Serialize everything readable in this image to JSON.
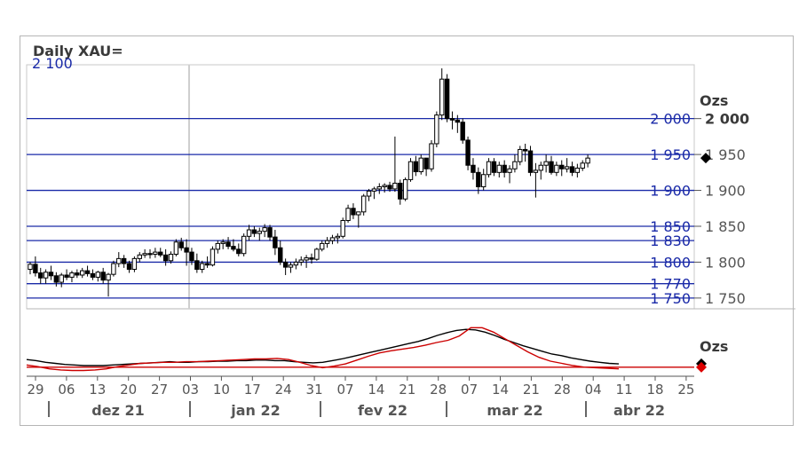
{
  "title": "Daily XAU=",
  "chart_data": [
    {
      "type": "candlestick",
      "title": "Daily XAU=",
      "unit_label": "Ozs",
      "top_partial_label": "2 100",
      "ylim": [
        1735,
        2075
      ],
      "y_ticks": [
        {
          "value": 2000,
          "label": "2 000",
          "bold": true
        },
        {
          "value": 1950,
          "label": "1 950"
        },
        {
          "value": 1900,
          "label": "1 900"
        },
        {
          "value": 1850,
          "label": "1 850"
        },
        {
          "value": 1800,
          "label": "1 800"
        },
        {
          "value": 1750,
          "label": "1 750"
        }
      ],
      "levels": [
        {
          "value": 2000,
          "label": "2 000"
        },
        {
          "value": 1950,
          "label": "1 950"
        },
        {
          "value": 1900,
          "label": "1 900"
        },
        {
          "value": 1850,
          "label": "1 850"
        },
        {
          "value": 1830,
          "label": "1 830"
        },
        {
          "value": 1800,
          "label": "1 800"
        },
        {
          "value": 1770,
          "label": "1 770"
        },
        {
          "value": 1750,
          "label": "1 750"
        }
      ],
      "last_value": 1945,
      "x_ticks": [
        "29",
        "06",
        "13",
        "20",
        "27",
        "03",
        "10",
        "17",
        "24",
        "31",
        "07",
        "14",
        "21",
        "28",
        "07",
        "14",
        "21",
        "28",
        "04",
        "11",
        "18",
        "25"
      ],
      "months": [
        "dez 21",
        "jan 22",
        "fev 22",
        "mar 22",
        "abr 22"
      ],
      "candles": [
        [
          1790,
          1800,
          1783,
          1797
        ],
        [
          1797,
          1808,
          1780,
          1785
        ],
        [
          1785,
          1792,
          1770,
          1778
        ],
        [
          1778,
          1790,
          1770,
          1786
        ],
        [
          1786,
          1795,
          1775,
          1781
        ],
        [
          1781,
          1786,
          1766,
          1772
        ],
        [
          1772,
          1785,
          1765,
          1782
        ],
        [
          1782,
          1790,
          1775,
          1779
        ],
        [
          1779,
          1788,
          1772,
          1785
        ],
        [
          1785,
          1790,
          1778,
          1782
        ],
        [
          1782,
          1792,
          1778,
          1788
        ],
        [
          1788,
          1795,
          1780,
          1784
        ],
        [
          1784,
          1790,
          1775,
          1779
        ],
        [
          1779,
          1788,
          1773,
          1786
        ],
        [
          1786,
          1792,
          1770,
          1775
        ],
        [
          1775,
          1785,
          1752,
          1783
        ],
        [
          1783,
          1802,
          1780,
          1798
        ],
        [
          1798,
          1814,
          1793,
          1805
        ],
        [
          1805,
          1810,
          1792,
          1798
        ],
        [
          1798,
          1802,
          1785,
          1790
        ],
        [
          1790,
          1808,
          1786,
          1805
        ],
        [
          1805,
          1814,
          1800,
          1810
        ],
        [
          1810,
          1818,
          1806,
          1812
        ],
        [
          1812,
          1818,
          1805,
          1811
        ],
        [
          1811,
          1820,
          1806,
          1814
        ],
        [
          1814,
          1820,
          1807,
          1810
        ],
        [
          1810,
          1818,
          1795,
          1802
        ],
        [
          1802,
          1815,
          1798,
          1811
        ],
        [
          1811,
          1832,
          1808,
          1828
        ],
        [
          1828,
          1834,
          1816,
          1820
        ],
        [
          1820,
          1832,
          1795,
          1814
        ],
        [
          1814,
          1820,
          1796,
          1802
        ],
        [
          1802,
          1812,
          1785,
          1790
        ],
        [
          1790,
          1802,
          1785,
          1798
        ],
        [
          1798,
          1808,
          1792,
          1796
        ],
        [
          1796,
          1822,
          1794,
          1818
        ],
        [
          1818,
          1830,
          1812,
          1826
        ],
        [
          1826,
          1832,
          1818,
          1828
        ],
        [
          1828,
          1835,
          1818,
          1822
        ],
        [
          1822,
          1832,
          1815,
          1818
        ],
        [
          1818,
          1826,
          1808,
          1812
        ],
        [
          1812,
          1840,
          1808,
          1836
        ],
        [
          1836,
          1852,
          1830,
          1845
        ],
        [
          1845,
          1850,
          1835,
          1840
        ],
        [
          1840,
          1848,
          1830,
          1843
        ],
        [
          1843,
          1853,
          1835,
          1848
        ],
        [
          1848,
          1852,
          1830,
          1835
        ],
        [
          1835,
          1845,
          1810,
          1820
        ],
        [
          1820,
          1830,
          1796,
          1800
        ],
        [
          1800,
          1805,
          1782,
          1793
        ],
        [
          1793,
          1800,
          1785,
          1796
        ],
        [
          1796,
          1805,
          1790,
          1800
        ],
        [
          1800,
          1808,
          1795,
          1803
        ],
        [
          1803,
          1810,
          1792,
          1806
        ],
        [
          1806,
          1812,
          1798,
          1804
        ],
        [
          1804,
          1820,
          1802,
          1818
        ],
        [
          1818,
          1830,
          1815,
          1826
        ],
        [
          1826,
          1835,
          1820,
          1830
        ],
        [
          1830,
          1838,
          1825,
          1834
        ],
        [
          1834,
          1840,
          1826,
          1836
        ],
        [
          1836,
          1862,
          1833,
          1858
        ],
        [
          1858,
          1880,
          1855,
          1875
        ],
        [
          1875,
          1882,
          1860,
          1866
        ],
        [
          1866,
          1870,
          1848,
          1870
        ],
        [
          1870,
          1895,
          1865,
          1892
        ],
        [
          1892,
          1902,
          1885,
          1899
        ],
        [
          1899,
          1905,
          1888,
          1902
        ],
        [
          1902,
          1910,
          1895,
          1905
        ],
        [
          1905,
          1910,
          1897,
          1907
        ],
        [
          1907,
          1912,
          1898,
          1902
        ],
        [
          1902,
          1975,
          1898,
          1910
        ],
        [
          1910,
          1915,
          1880,
          1888
        ],
        [
          1888,
          1918,
          1885,
          1915
        ],
        [
          1915,
          1945,
          1912,
          1940
        ],
        [
          1940,
          1948,
          1920,
          1926
        ],
        [
          1926,
          1950,
          1922,
          1945
        ],
        [
          1945,
          1945,
          1920,
          1930
        ],
        [
          1930,
          1970,
          1926,
          1965
        ],
        [
          1965,
          2010,
          1960,
          2005
        ],
        [
          2005,
          2070,
          1998,
          2055
        ],
        [
          2055,
          2062,
          1995,
          2000
        ],
        [
          2000,
          2010,
          1985,
          1998
        ],
        [
          1998,
          2005,
          1980,
          1995
        ],
        [
          1995,
          2000,
          1965,
          1970
        ],
        [
          1970,
          1975,
          1928,
          1935
        ],
        [
          1935,
          1945,
          1915,
          1925
        ],
        [
          1925,
          1932,
          1895,
          1905
        ],
        [
          1905,
          1930,
          1900,
          1922
        ],
        [
          1922,
          1945,
          1918,
          1940
        ],
        [
          1940,
          1945,
          1920,
          1925
        ],
        [
          1925,
          1940,
          1918,
          1935
        ],
        [
          1935,
          1942,
          1918,
          1925
        ],
        [
          1925,
          1935,
          1910,
          1930
        ],
        [
          1930,
          1950,
          1925,
          1940
        ],
        [
          1940,
          1962,
          1935,
          1957
        ],
        [
          1957,
          1965,
          1940,
          1955
        ],
        [
          1955,
          1962,
          1920,
          1925
        ],
        [
          1925,
          1938,
          1890,
          1928
        ],
        [
          1928,
          1940,
          1915,
          1935
        ],
        [
          1935,
          1950,
          1925,
          1940
        ],
        [
          1940,
          1948,
          1922,
          1925
        ],
        [
          1925,
          1940,
          1920,
          1935
        ],
        [
          1935,
          1942,
          1920,
          1930
        ],
        [
          1930,
          1945,
          1925,
          1933
        ],
        [
          1933,
          1940,
          1920,
          1925
        ],
        [
          1925,
          1937,
          1918,
          1931
        ],
        [
          1931,
          1942,
          1927,
          1938
        ],
        [
          1938,
          1950,
          1932,
          1945
        ]
      ]
    },
    {
      "type": "line",
      "unit_label": "Ozs",
      "ylim": [
        -10,
        100
      ],
      "baseline": 0,
      "series": [
        {
          "color": "#000000",
          "values": [
            14,
            12,
            9,
            7,
            5,
            4,
            3,
            3,
            3,
            4,
            5,
            6,
            7,
            8,
            9,
            10,
            9,
            9,
            10,
            10,
            11,
            11,
            12,
            12,
            13,
            13,
            12,
            12,
            10,
            9,
            8,
            9,
            12,
            15,
            19,
            23,
            27,
            31,
            35,
            39,
            43,
            47,
            52,
            58,
            63,
            67,
            69,
            68,
            64,
            58,
            51,
            45,
            39,
            34,
            29,
            24,
            21,
            17,
            14,
            11,
            9,
            7,
            6
          ]
        },
        {
          "color": "#cc0000",
          "values": [
            4,
            1,
            -3,
            -5,
            -6,
            -6,
            -5,
            -3,
            1,
            4,
            7,
            8,
            9,
            9,
            10,
            10,
            11,
            12,
            13,
            14,
            15,
            15,
            16,
            14,
            9,
            3,
            -1,
            2,
            6,
            13,
            20,
            26,
            30,
            33,
            36,
            40,
            45,
            49,
            57,
            72,
            72,
            64,
            52,
            40,
            28,
            18,
            11,
            7,
            3,
            0,
            -1,
            -2,
            -3
          ]
        }
      ]
    }
  ]
}
